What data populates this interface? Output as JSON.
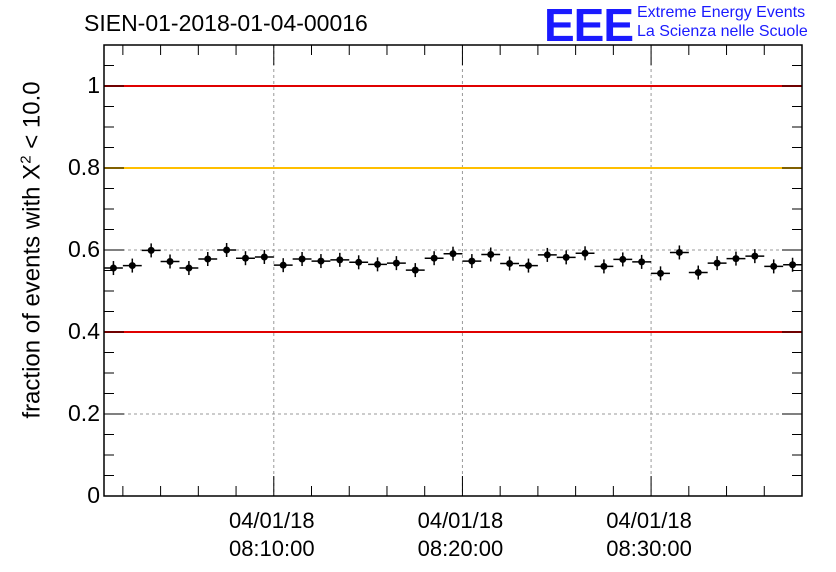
{
  "chart_data": {
    "type": "scatter",
    "title": "SIEN-01-2018-01-04-00016",
    "ylabel_prefix": "fraction of events with X",
    "ylabel_sup": "2",
    "ylabel_suffix": " < 10.0",
    "ylim": [
      0,
      1.1
    ],
    "yticks": [
      {
        "value": 0,
        "label": "0"
      },
      {
        "value": 0.2,
        "label": "0.2"
      },
      {
        "value": 0.4,
        "label": "0.4"
      },
      {
        "value": 0.6,
        "label": "0.6"
      },
      {
        "value": 0.8,
        "label": "0.8"
      },
      {
        "value": 1,
        "label": "1"
      }
    ],
    "xlim_minutes": [
      0,
      37
    ],
    "xticks": [
      {
        "minute": 9,
        "date": "04/01/18",
        "time": "08:10:00"
      },
      {
        "minute": 19,
        "date": "04/01/18",
        "time": "08:20:00"
      },
      {
        "minute": 29,
        "date": "04/01/18",
        "time": "08:30:00"
      }
    ],
    "reference_lines": [
      {
        "value": 1.0,
        "color": "#e00000"
      },
      {
        "value": 0.8,
        "color": "#ffbf00"
      },
      {
        "value": 0.4,
        "color": "#e00000"
      }
    ],
    "points": [
      0.556,
      0.562,
      0.599,
      0.572,
      0.556,
      0.578,
      0.6,
      0.58,
      0.583,
      0.563,
      0.578,
      0.573,
      0.576,
      0.57,
      0.565,
      0.568,
      0.551,
      0.58,
      0.591,
      0.573,
      0.589,
      0.567,
      0.562,
      0.588,
      0.582,
      0.592,
      0.56,
      0.577,
      0.571,
      0.543,
      0.594,
      0.545,
      0.568,
      0.579,
      0.585,
      0.56,
      0.564
    ]
  },
  "logo": {
    "mark": "EEE",
    "line1": "Extreme Energy Events",
    "line2": "La Scienza nelle Scuole"
  }
}
